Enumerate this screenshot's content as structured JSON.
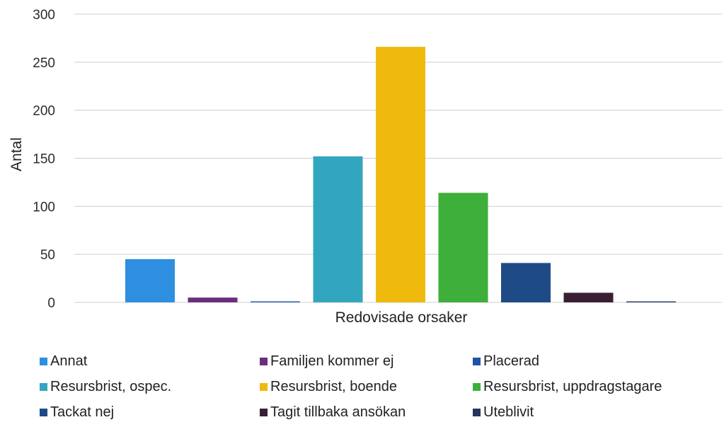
{
  "chart_data": {
    "type": "bar",
    "title": "",
    "xlabel": "Redovisade orsaker",
    "ylabel": "Antal",
    "ylim": [
      0,
      300
    ],
    "yticks": [
      0,
      50,
      100,
      150,
      200,
      250,
      300
    ],
    "grid": true,
    "legend_position": "bottom",
    "series": [
      {
        "name": "Annat",
        "value": 45,
        "color": "#2E8FE0"
      },
      {
        "name": "Familjen kommer ej",
        "value": 5,
        "color": "#6A2E7E"
      },
      {
        "name": "Placerad",
        "value": 1,
        "color": "#1F52A8"
      },
      {
        "name": "Resursbrist, ospec.",
        "value": 152,
        "color": "#33A6BF"
      },
      {
        "name": "Resursbrist, boende",
        "value": 266,
        "color": "#F0B90E"
      },
      {
        "name": "Resursbrist, uppdragstagare",
        "value": 114,
        "color": "#3DAF3A"
      },
      {
        "name": "Tackat nej",
        "value": 41,
        "color": "#1E4B86"
      },
      {
        "name": "Tagit tillbaka ansökan",
        "value": 10,
        "color": "#3A1F33"
      },
      {
        "name": "Uteblivit",
        "value": 1,
        "color": "#25335E"
      }
    ]
  }
}
